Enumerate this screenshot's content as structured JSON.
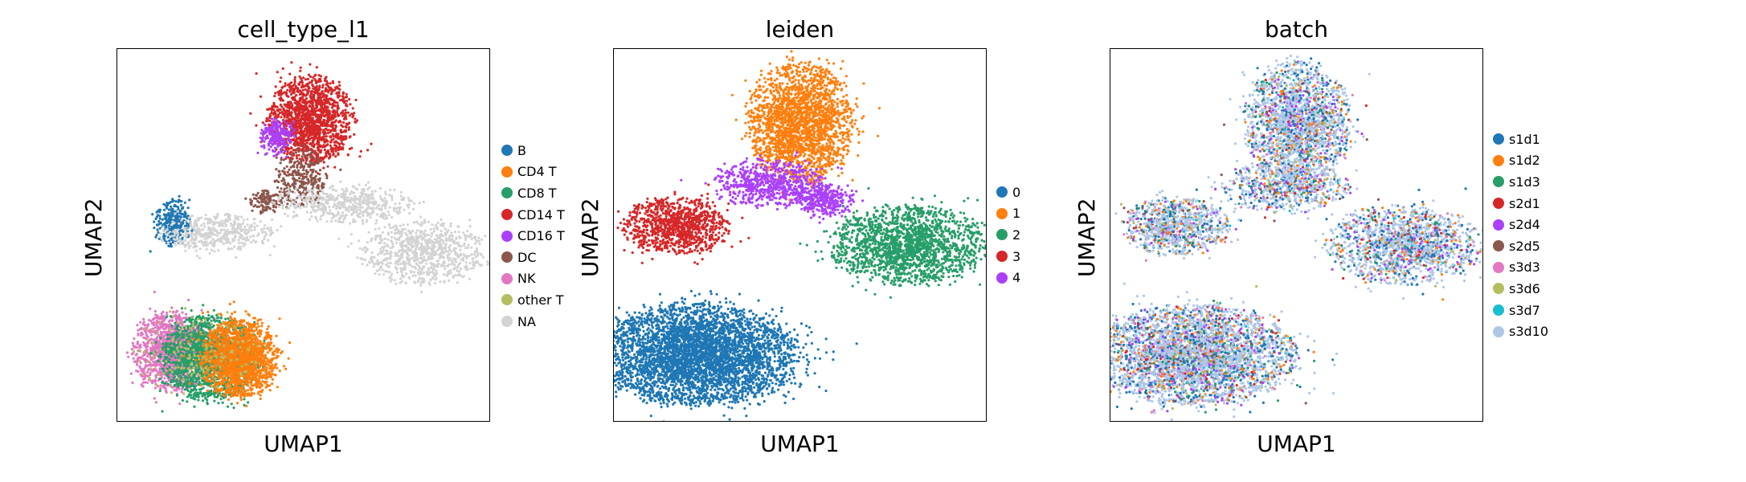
{
  "chart_data": [
    {
      "type": "scatter",
      "title": "cell_type_l1",
      "xlabel": "UMAP1",
      "ylabel": "UMAP2",
      "grid": false,
      "legend_position": "right",
      "legend": [
        {
          "label": "B",
          "color": "#1f77b4"
        },
        {
          "label": "CD4 T",
          "color": "#ff7f0e"
        },
        {
          "label": "CD8 T",
          "color": "#279e68"
        },
        {
          "label": "CD14 T",
          "color": "#d62728"
        },
        {
          "label": "CD16 T",
          "color": "#aa40fc"
        },
        {
          "label": "DC",
          "color": "#8c564b"
        },
        {
          "label": "NK",
          "color": "#e377c2"
        },
        {
          "label": "other T",
          "color": "#b5bd61"
        },
        {
          "label": "NA",
          "color": "#d3d3d3"
        }
      ],
      "clusters": [
        {
          "category": "CD14 T",
          "cx": 6.2,
          "cy": 9.1,
          "rx": 0.9,
          "ry": 0.85,
          "n": 1500
        },
        {
          "category": "CD16 T",
          "cx": 5.1,
          "cy": 8.6,
          "rx": 0.35,
          "ry": 0.35,
          "n": 220
        },
        {
          "category": "DC",
          "cx": 5.9,
          "cy": 7.3,
          "rx": 0.55,
          "ry": 0.55,
          "n": 280
        },
        {
          "category": "DC",
          "cx": 4.7,
          "cy": 6.6,
          "rx": 0.35,
          "ry": 0.25,
          "n": 120
        },
        {
          "category": "B",
          "cx": 1.6,
          "cy": 5.9,
          "rx": 0.4,
          "ry": 0.45,
          "n": 300
        },
        {
          "category": "NA",
          "cx": 3.0,
          "cy": 5.6,
          "rx": 1.2,
          "ry": 0.35,
          "n": 450
        },
        {
          "category": "NA",
          "cx": 7.4,
          "cy": 6.5,
          "rx": 1.5,
          "ry": 0.35,
          "n": 500
        },
        {
          "category": "NA",
          "cx": 10.0,
          "cy": 5.0,
          "rx": 1.3,
          "ry": 0.6,
          "n": 800
        },
        {
          "category": "NK",
          "cx": 1.5,
          "cy": 1.9,
          "rx": 0.8,
          "ry": 0.75,
          "n": 1300
        },
        {
          "category": "CD8 T",
          "cx": 2.8,
          "cy": 1.7,
          "rx": 1.0,
          "ry": 0.8,
          "n": 1800
        },
        {
          "category": "CD4 T",
          "cx": 3.8,
          "cy": 1.7,
          "rx": 0.8,
          "ry": 0.75,
          "n": 1700
        },
        {
          "category": "other T",
          "cx": 2.3,
          "cy": 1.8,
          "rx": 1.3,
          "ry": 0.8,
          "n": 160
        }
      ]
    },
    {
      "type": "scatter",
      "title": "leiden",
      "xlabel": "UMAP1",
      "ylabel": "UMAP2",
      "grid": false,
      "legend_position": "right",
      "legend": [
        {
          "label": "0",
          "color": "#1f77b4"
        },
        {
          "label": "1",
          "color": "#ff7f0e"
        },
        {
          "label": "2",
          "color": "#279e68"
        },
        {
          "label": "3",
          "color": "#d62728"
        },
        {
          "label": "4",
          "color": "#aa40fc"
        }
      ],
      "clusters": [
        {
          "category": "1",
          "cx": 6.0,
          "cy": 9.0,
          "rx": 1.1,
          "ry": 1.15,
          "n": 2200
        },
        {
          "category": "4",
          "cx": 5.0,
          "cy": 7.1,
          "rx": 1.2,
          "ry": 0.45,
          "n": 700
        },
        {
          "category": "4",
          "cx": 6.8,
          "cy": 6.6,
          "rx": 0.6,
          "ry": 0.3,
          "n": 300
        },
        {
          "category": "3",
          "cx": 1.8,
          "cy": 5.8,
          "rx": 1.1,
          "ry": 0.55,
          "n": 1000
        },
        {
          "category": "2",
          "cx": 9.6,
          "cy": 5.2,
          "rx": 1.6,
          "ry": 0.75,
          "n": 1800
        },
        {
          "category": "0",
          "cx": 2.5,
          "cy": 1.8,
          "rx": 2.1,
          "ry": 0.95,
          "n": 4200
        }
      ]
    },
    {
      "type": "scatter",
      "title": "batch",
      "xlabel": "UMAP1",
      "ylabel": "UMAP2",
      "grid": false,
      "legend_position": "right",
      "legend": [
        {
          "label": "s1d1",
          "color": "#1f77b4"
        },
        {
          "label": "s1d2",
          "color": "#ff7f0e"
        },
        {
          "label": "s1d3",
          "color": "#279e68"
        },
        {
          "label": "s2d1",
          "color": "#d62728"
        },
        {
          "label": "s2d4",
          "color": "#aa40fc"
        },
        {
          "label": "s2d5",
          "color": "#8c564b"
        },
        {
          "label": "s3d3",
          "color": "#e377c2"
        },
        {
          "label": "s3d6",
          "color": "#b5bd61"
        },
        {
          "label": "s3d7",
          "color": "#17becf"
        },
        {
          "label": "s3d10",
          "color": "#aec7e8"
        }
      ],
      "clusters": [
        {
          "category": "mixed",
          "cx": 6.0,
          "cy": 9.0,
          "rx": 1.1,
          "ry": 1.15,
          "n": 2000
        },
        {
          "category": "mixed",
          "cx": 5.6,
          "cy": 7.0,
          "rx": 1.3,
          "ry": 0.5,
          "n": 700
        },
        {
          "category": "mixed",
          "cx": 1.9,
          "cy": 5.8,
          "rx": 1.1,
          "ry": 0.55,
          "n": 900
        },
        {
          "category": "mixed",
          "cx": 9.6,
          "cy": 5.2,
          "rx": 1.6,
          "ry": 0.75,
          "n": 1600
        },
        {
          "category": "mixed",
          "cx": 2.5,
          "cy": 1.8,
          "rx": 2.1,
          "ry": 0.95,
          "n": 3800
        }
      ],
      "mixing_weights": [
        0.14,
        0.06,
        0.04,
        0.03,
        0.05,
        0.02,
        0.03,
        0.02,
        0.01,
        0.6
      ]
    }
  ]
}
